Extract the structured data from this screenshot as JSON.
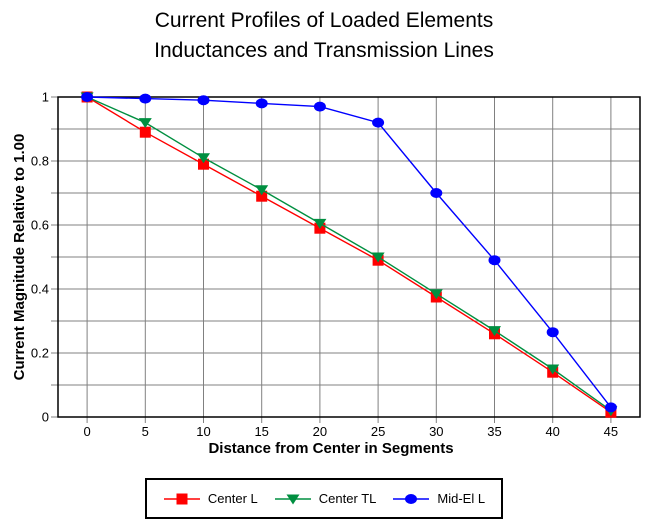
{
  "title": {
    "line1": "Current Profiles of Loaded Elements",
    "line2": "Inductances and Transmission Lines"
  },
  "chart_data": {
    "type": "line",
    "title": "Current Profiles of Loaded Elements Inductances and Transmission Lines",
    "xlabel": "Distance from Center in Segments",
    "ylabel": "Current Magnitude Relative to 1.00",
    "x": [
      0,
      5,
      10,
      15,
      20,
      25,
      30,
      35,
      40,
      45
    ],
    "series": [
      {
        "name": "Center L",
        "marker": "square",
        "color": "#FF0000",
        "values": [
          1.0,
          0.89,
          0.79,
          0.69,
          0.59,
          0.49,
          0.375,
          0.26,
          0.14,
          0.015
        ]
      },
      {
        "name": "Center TL",
        "marker": "triangle-down",
        "color": "#008F40",
        "values": [
          1.0,
          0.92,
          0.81,
          0.71,
          0.605,
          0.5,
          0.385,
          0.27,
          0.15,
          0.02
        ]
      },
      {
        "name": "Mid-El L",
        "marker": "circle",
        "color": "#0000FF",
        "values": [
          1.0,
          0.995,
          0.99,
          0.98,
          0.97,
          0.92,
          0.7,
          0.49,
          0.265,
          0.03
        ]
      }
    ],
    "xlim": [
      -2.5,
      47.5
    ],
    "ylim": [
      0,
      1
    ],
    "x_ticks": [
      0,
      5,
      10,
      15,
      20,
      25,
      30,
      35,
      40,
      45
    ],
    "x_tick_labels": [
      "0",
      "5",
      "10",
      "15",
      "20",
      "25",
      "30",
      "35",
      "40",
      "45"
    ],
    "y_tick_values": [
      1,
      0.8,
      0.6,
      0.4,
      0.2,
      0
    ],
    "y_tick_labels": [
      "1",
      "0.8",
      "0.6",
      "0.4",
      "0.2",
      "0"
    ],
    "y_grid_step": 0.1,
    "grid": true,
    "grid_color": "#808080",
    "axis_color": "#000000",
    "background_color": "#FFFFFF",
    "legend_position": "bottom"
  }
}
